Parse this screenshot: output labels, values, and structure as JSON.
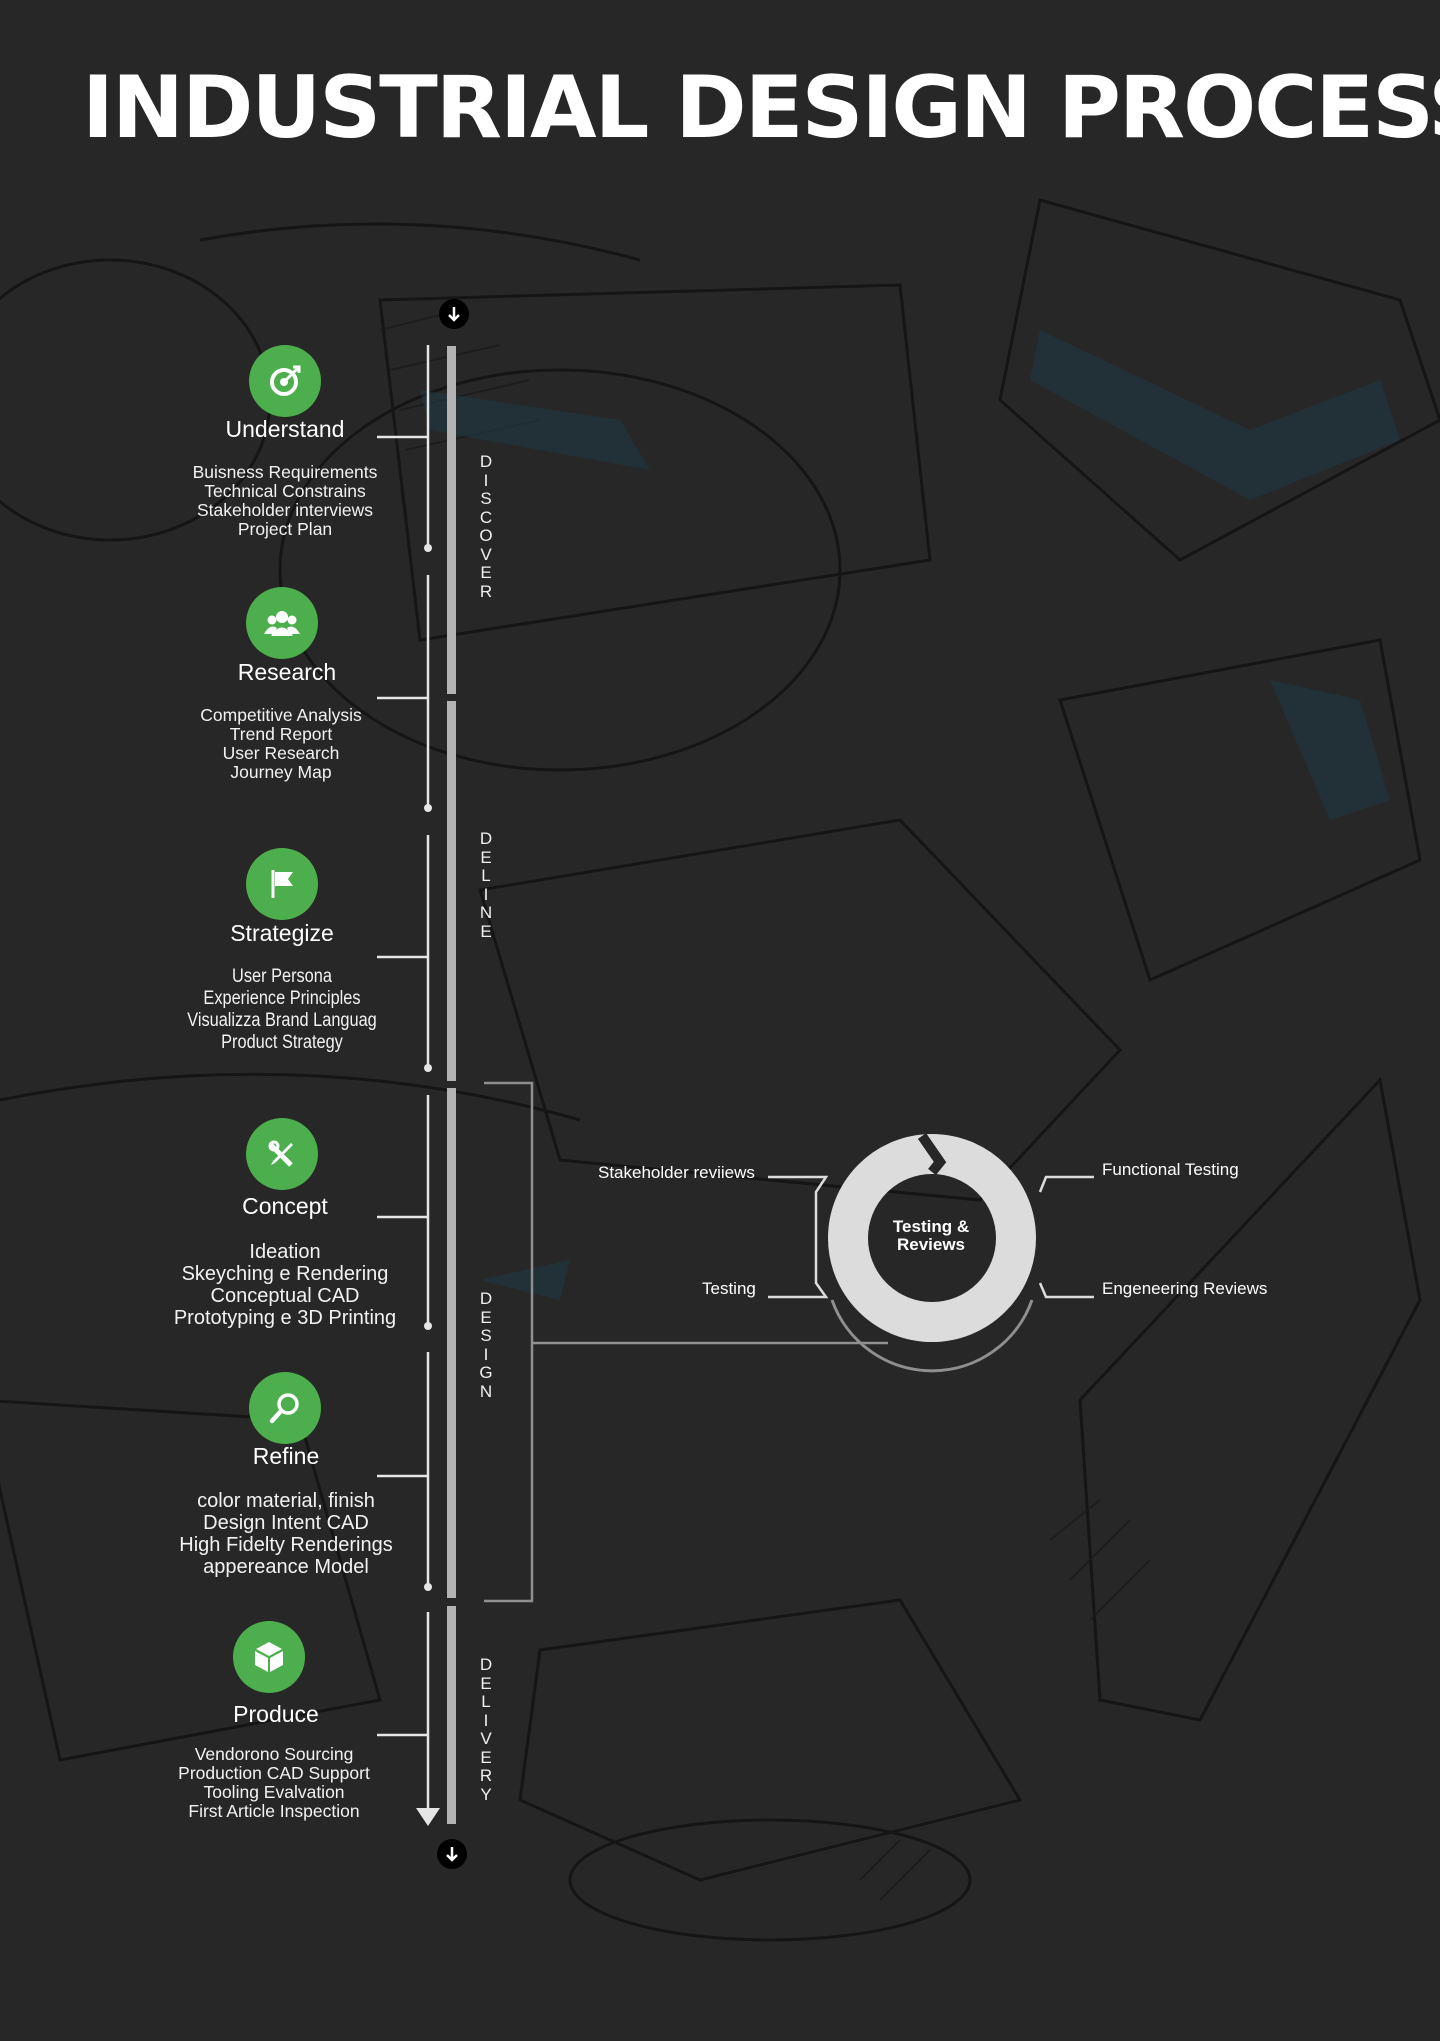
{
  "title": "INDUSTRIAL DESIGN PROCESS",
  "colors": {
    "background": "#272727",
    "accent_green": "#4cae4c",
    "rail": "#b3b3b3",
    "text": "#ffffff"
  },
  "steps": [
    {
      "title": "Understand",
      "icon": "target-icon",
      "items": [
        "Buisness Requirements",
        "Technical Constrains",
        "Stakeholder interviews",
        "Project Plan"
      ]
    },
    {
      "title": "Research",
      "icon": "users-icon",
      "items": [
        "Competitive Analysis",
        "Trend Report",
        "User Research",
        "Journey Map"
      ]
    },
    {
      "title": "Strategize",
      "icon": "flag-icon",
      "items": [
        "User Persona",
        "Experience Principles",
        "Visualizza Brand Languag",
        "Product Strategy"
      ]
    },
    {
      "title": "Concept",
      "icon": "tools-icon",
      "items": [
        "Ideation",
        "Skeyching e Rendering",
        "Conceptual CAD",
        "Prototyping e 3D Printing"
      ]
    },
    {
      "title": "Refine",
      "icon": "magnifier-icon",
      "items": [
        "color material, finish",
        "Design Intent CAD",
        "High Fidelty Renderings",
        "appereance Model"
      ]
    },
    {
      "title": "Produce",
      "icon": "box-icon",
      "items": [
        "Vendorono Sourcing",
        "Production CAD Support",
        "Tooling Evalvation",
        "First Article Inspection"
      ]
    }
  ],
  "phases": [
    {
      "name": "DISCOVER",
      "letters": [
        "D",
        "I",
        "S",
        "C",
        "O",
        "V",
        "E",
        "R"
      ]
    },
    {
      "name": "DELINE",
      "letters": [
        "D",
        "E",
        "L",
        "I",
        "N",
        "E"
      ]
    },
    {
      "name": "DESIGN",
      "letters": [
        "D",
        "E",
        "S",
        "I",
        "G",
        "N"
      ]
    },
    {
      "name": "DELIVERY",
      "letters": [
        "D",
        "E",
        "L",
        "I",
        "V",
        "E",
        "R",
        "Y"
      ]
    }
  ],
  "testing": {
    "center_lines": [
      "Testing &",
      "Reviews"
    ],
    "left_top": "Stakeholder reviiews",
    "left_bottom": "Testing",
    "right_top": "Functional Testing",
    "right_bottom": "Engeneering Reviews"
  }
}
